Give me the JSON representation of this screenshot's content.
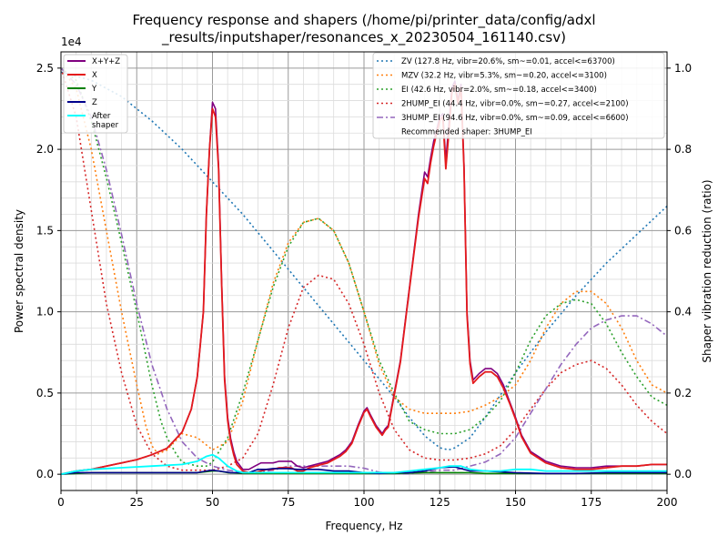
{
  "chart_data": {
    "type": "line",
    "title_line1": "Frequency response and shapers (/home/pi/printer_data/config/adxl",
    "title_line2": "_results/inputshaper/resonances_x_20230504_161140.csv)",
    "xlabel": "Frequency, Hz",
    "ylabel": "Power spectral density",
    "y2label": "Shaper vibration reduction (ratio)",
    "y_multiplier": "1e4",
    "xlim": [
      0,
      200
    ],
    "ylim": [
      -0.1,
      2.6
    ],
    "y2lim": [
      -0.04,
      1.04
    ],
    "x_ticks": [
      0,
      25,
      50,
      75,
      100,
      125,
      150,
      175,
      200
    ],
    "y_ticks": [
      0.0,
      0.5,
      1.0,
      1.5,
      2.0,
      2.5
    ],
    "y2_ticks": [
      0.0,
      0.2,
      0.4,
      0.6,
      0.8,
      1.0
    ],
    "grid": true,
    "legend_left_placement": "top-left",
    "legend_right_placement": "top-right",
    "psd_series": [
      {
        "name": "X+Y+Z",
        "color": "#800080",
        "width": 1.6,
        "x": [
          0,
          5,
          10,
          15,
          20,
          25,
          30,
          35,
          40,
          43,
          45,
          47,
          48,
          49,
          50,
          51,
          52,
          53,
          54,
          55,
          56,
          57,
          58,
          60,
          62,
          64,
          66,
          68,
          70,
          72,
          74,
          76,
          78,
          80,
          82,
          84,
          86,
          88,
          90,
          92,
          94,
          96,
          98,
          100,
          101,
          102,
          104,
          106,
          107,
          108,
          110,
          112,
          114,
          116,
          118,
          120,
          121,
          122,
          123,
          124,
          125,
          126,
          127,
          128,
          129,
          130,
          131,
          132,
          133,
          134,
          135,
          136,
          138,
          140,
          142,
          144,
          146,
          148,
          150,
          152,
          155,
          160,
          165,
          170,
          175,
          180,
          185,
          190,
          195,
          200
        ],
        "y": [
          0,
          0.02,
          0.03,
          0.05,
          0.07,
          0.09,
          0.12,
          0.16,
          0.26,
          0.4,
          0.6,
          1.0,
          1.6,
          2.0,
          2.29,
          2.25,
          1.9,
          1.2,
          0.6,
          0.35,
          0.22,
          0.14,
          0.08,
          0.03,
          0.03,
          0.05,
          0.07,
          0.07,
          0.07,
          0.08,
          0.08,
          0.08,
          0.05,
          0.04,
          0.05,
          0.06,
          0.07,
          0.08,
          0.1,
          0.12,
          0.15,
          0.2,
          0.3,
          0.39,
          0.41,
          0.37,
          0.3,
          0.25,
          0.28,
          0.3,
          0.5,
          0.7,
          1.0,
          1.3,
          1.6,
          1.86,
          1.83,
          1.95,
          2.05,
          2.12,
          2.2,
          2.22,
          1.93,
          2.15,
          2.38,
          2.42,
          2.3,
          2.4,
          1.9,
          1.0,
          0.7,
          0.58,
          0.62,
          0.65,
          0.65,
          0.62,
          0.55,
          0.45,
          0.35,
          0.24,
          0.14,
          0.08,
          0.05,
          0.04,
          0.04,
          0.05,
          0.05,
          0.05,
          0.06,
          0.06
        ]
      },
      {
        "name": "X",
        "color": "#e41a1c",
        "width": 1.8,
        "x": [
          0,
          5,
          10,
          15,
          20,
          25,
          30,
          35,
          40,
          43,
          45,
          47,
          48,
          49,
          50,
          51,
          52,
          53,
          54,
          55,
          56,
          57,
          58,
          60,
          62,
          64,
          66,
          68,
          70,
          72,
          74,
          76,
          78,
          80,
          82,
          84,
          86,
          88,
          90,
          92,
          94,
          96,
          98,
          100,
          101,
          102,
          104,
          106,
          107,
          108,
          110,
          112,
          114,
          116,
          118,
          120,
          121,
          122,
          123,
          124,
          125,
          126,
          127,
          128,
          129,
          130,
          131,
          132,
          133,
          134,
          135,
          136,
          138,
          140,
          142,
          144,
          146,
          148,
          150,
          152,
          155,
          160,
          165,
          170,
          175,
          180,
          185,
          190,
          195,
          200
        ],
        "y": [
          0,
          0.02,
          0.03,
          0.05,
          0.07,
          0.09,
          0.12,
          0.16,
          0.26,
          0.4,
          0.6,
          1.0,
          1.6,
          2.0,
          2.25,
          2.2,
          1.88,
          1.18,
          0.58,
          0.33,
          0.2,
          0.12,
          0.06,
          0.02,
          0.01,
          0.01,
          0.02,
          0.03,
          0.03,
          0.04,
          0.04,
          0.04,
          0.02,
          0.02,
          0.04,
          0.05,
          0.06,
          0.07,
          0.09,
          0.11,
          0.14,
          0.19,
          0.29,
          0.38,
          0.4,
          0.36,
          0.29,
          0.24,
          0.27,
          0.29,
          0.49,
          0.69,
          0.99,
          1.29,
          1.58,
          1.82,
          1.79,
          1.92,
          2.02,
          2.1,
          2.18,
          2.2,
          1.88,
          2.1,
          2.35,
          2.4,
          2.28,
          2.38,
          1.88,
          0.98,
          0.68,
          0.56,
          0.6,
          0.63,
          0.63,
          0.6,
          0.53,
          0.44,
          0.34,
          0.23,
          0.13,
          0.07,
          0.04,
          0.03,
          0.03,
          0.04,
          0.05,
          0.05,
          0.06,
          0.06
        ]
      },
      {
        "name": "Y",
        "color": "#008000",
        "width": 1.6,
        "x": [
          0,
          5,
          10,
          30,
          45,
          50,
          52,
          55,
          60,
          80,
          100,
          110,
          120,
          125,
          130,
          135,
          140,
          150,
          160,
          180,
          200
        ],
        "y": [
          0,
          0.005,
          0.01,
          0.01,
          0.01,
          0.02,
          0.02,
          0.01,
          0.005,
          0.005,
          0.005,
          0.005,
          0.01,
          0.01,
          0.01,
          0.01,
          0.005,
          0.005,
          0.005,
          0.005,
          0.005
        ]
      },
      {
        "name": "Z",
        "color": "#00008b",
        "width": 1.6,
        "x": [
          0,
          5,
          10,
          20,
          30,
          40,
          45,
          48,
          50,
          52,
          54,
          56,
          58,
          60,
          62,
          65,
          68,
          70,
          72,
          75,
          78,
          80,
          85,
          90,
          95,
          100,
          105,
          110,
          115,
          120,
          125,
          130,
          135,
          140,
          150,
          160,
          170,
          180,
          190,
          200
        ],
        "y": [
          0,
          0.01,
          0.01,
          0.01,
          0.01,
          0.01,
          0.01,
          0.02,
          0.025,
          0.02,
          0.015,
          0.01,
          0.01,
          0.01,
          0.01,
          0.03,
          0.03,
          0.035,
          0.035,
          0.035,
          0.03,
          0.03,
          0.03,
          0.02,
          0.02,
          0.01,
          0.005,
          0.01,
          0.01,
          0.02,
          0.04,
          0.045,
          0.02,
          0.02,
          0.01,
          0.005,
          0.005,
          0.01,
          0.01,
          0.01
        ]
      },
      {
        "name": "After\nshaper",
        "color": "#00ffff",
        "width": 1.8,
        "x": [
          0,
          5,
          10,
          20,
          30,
          40,
          45,
          48,
          50,
          52,
          55,
          58,
          60,
          65,
          70,
          80,
          90,
          100,
          110,
          115,
          120,
          125,
          128,
          130,
          132,
          135,
          140,
          145,
          150,
          155,
          160,
          170,
          180,
          190,
          200
        ],
        "y": [
          0,
          0.02,
          0.03,
          0.04,
          0.05,
          0.06,
          0.08,
          0.11,
          0.12,
          0.1,
          0.05,
          0.02,
          0.01,
          0.01,
          0.01,
          0.01,
          0.01,
          0.01,
          0.01,
          0.02,
          0.03,
          0.04,
          0.05,
          0.05,
          0.05,
          0.03,
          0.02,
          0.02,
          0.03,
          0.03,
          0.02,
          0.02,
          0.02,
          0.02,
          0.02
        ]
      }
    ],
    "shaper_series": [
      {
        "name": "ZV (127.8 Hz, vibr=20.6%, sm~=0.01, accel<=63700)",
        "color": "#1f77b4",
        "dash": "2,3",
        "x": [
          0,
          10,
          20,
          30,
          40,
          50,
          60,
          70,
          80,
          90,
          100,
          110,
          115,
          120,
          125,
          128,
          130,
          135,
          140,
          150,
          160,
          170,
          180,
          190,
          200
        ],
        "y": [
          0.99,
          0.97,
          0.93,
          0.87,
          0.8,
          0.72,
          0.64,
          0.55,
          0.46,
          0.37,
          0.28,
          0.19,
          0.14,
          0.095,
          0.065,
          0.06,
          0.065,
          0.09,
          0.14,
          0.25,
          0.35,
          0.44,
          0.52,
          0.59,
          0.66
        ]
      },
      {
        "name": "MZV (32.2 Hz, vibr=5.3%, sm~=0.20, accel<=3100)",
        "color": "#ff7f0e",
        "dash": "2,3",
        "x": [
          0,
          5,
          10,
          15,
          20,
          25,
          28,
          30,
          32,
          35,
          40,
          45,
          50,
          55,
          60,
          65,
          70,
          75,
          80,
          85,
          90,
          95,
          100,
          105,
          110,
          115,
          120,
          125,
          130,
          135,
          140,
          145,
          150,
          155,
          160,
          165,
          170,
          175,
          180,
          185,
          190,
          195,
          200
        ],
        "y": [
          1.0,
          0.95,
          0.8,
          0.6,
          0.4,
          0.22,
          0.12,
          0.07,
          0.05,
          0.06,
          0.1,
          0.09,
          0.06,
          0.08,
          0.18,
          0.33,
          0.47,
          0.57,
          0.62,
          0.63,
          0.6,
          0.52,
          0.4,
          0.27,
          0.19,
          0.16,
          0.15,
          0.15,
          0.15,
          0.155,
          0.17,
          0.19,
          0.22,
          0.28,
          0.36,
          0.42,
          0.45,
          0.45,
          0.42,
          0.36,
          0.28,
          0.22,
          0.2
        ]
      },
      {
        "name": "EI (42.6 Hz, vibr=2.0%, sm~=0.18, accel<=3400)",
        "color": "#2ca02c",
        "dash": "2,3",
        "x": [
          0,
          5,
          10,
          15,
          20,
          25,
          30,
          33,
          35,
          38,
          40,
          45,
          48,
          50,
          55,
          60,
          65,
          70,
          75,
          80,
          85,
          90,
          95,
          100,
          105,
          110,
          115,
          120,
          125,
          130,
          135,
          140,
          145,
          150,
          155,
          160,
          165,
          170,
          175,
          180,
          185,
          190,
          195,
          200
        ],
        "y": [
          1.0,
          0.97,
          0.87,
          0.73,
          0.57,
          0.4,
          0.22,
          0.13,
          0.09,
          0.05,
          0.03,
          0.02,
          0.02,
          0.03,
          0.09,
          0.2,
          0.33,
          0.46,
          0.56,
          0.62,
          0.63,
          0.6,
          0.52,
          0.4,
          0.28,
          0.2,
          0.13,
          0.11,
          0.1,
          0.1,
          0.11,
          0.14,
          0.18,
          0.25,
          0.33,
          0.39,
          0.42,
          0.43,
          0.42,
          0.37,
          0.3,
          0.24,
          0.19,
          0.17
        ]
      },
      {
        "name": "2HUMP_EI (44.4 Hz, vibr=0.0%, sm~=0.27, accel<=2100)",
        "color": "#d62728",
        "dash": "2,3",
        "x": [
          0,
          5,
          10,
          15,
          20,
          25,
          30,
          35,
          40,
          45,
          50,
          55,
          60,
          65,
          70,
          75,
          80,
          85,
          90,
          95,
          100,
          105,
          110,
          115,
          120,
          125,
          130,
          135,
          140,
          145,
          150,
          155,
          160,
          165,
          170,
          175,
          180,
          185,
          190,
          195,
          200
        ],
        "y": [
          1.0,
          0.88,
          0.65,
          0.42,
          0.25,
          0.12,
          0.05,
          0.02,
          0.01,
          0.01,
          0.01,
          0.02,
          0.04,
          0.1,
          0.22,
          0.36,
          0.46,
          0.49,
          0.48,
          0.42,
          0.32,
          0.2,
          0.11,
          0.06,
          0.04,
          0.035,
          0.035,
          0.04,
          0.05,
          0.07,
          0.11,
          0.16,
          0.21,
          0.25,
          0.27,
          0.28,
          0.26,
          0.22,
          0.17,
          0.13,
          0.1
        ]
      },
      {
        "name": "3HUMP_EI (94.6 Hz, vibr=0.0%, sm~=0.09, accel<=6600)",
        "color": "#9467bd",
        "dash": "7,3,2,3",
        "x": [
          0,
          5,
          10,
          15,
          20,
          25,
          30,
          35,
          40,
          45,
          50,
          55,
          60,
          65,
          70,
          75,
          80,
          85,
          90,
          95,
          100,
          105,
          110,
          115,
          120,
          125,
          130,
          135,
          140,
          145,
          150,
          155,
          160,
          165,
          170,
          175,
          180,
          185,
          190,
          195,
          200
        ],
        "y": [
          1.0,
          0.96,
          0.88,
          0.75,
          0.59,
          0.42,
          0.27,
          0.16,
          0.08,
          0.04,
          0.02,
          0.01,
          0.005,
          0.005,
          0.01,
          0.02,
          0.02,
          0.02,
          0.02,
          0.02,
          0.015,
          0.005,
          0.001,
          0.001,
          0.005,
          0.01,
          0.01,
          0.02,
          0.03,
          0.05,
          0.09,
          0.15,
          0.21,
          0.27,
          0.32,
          0.36,
          0.38,
          0.39,
          0.39,
          0.37,
          0.34
        ]
      }
    ],
    "recommendation": "Recommended shaper: 3HUMP_EI"
  }
}
